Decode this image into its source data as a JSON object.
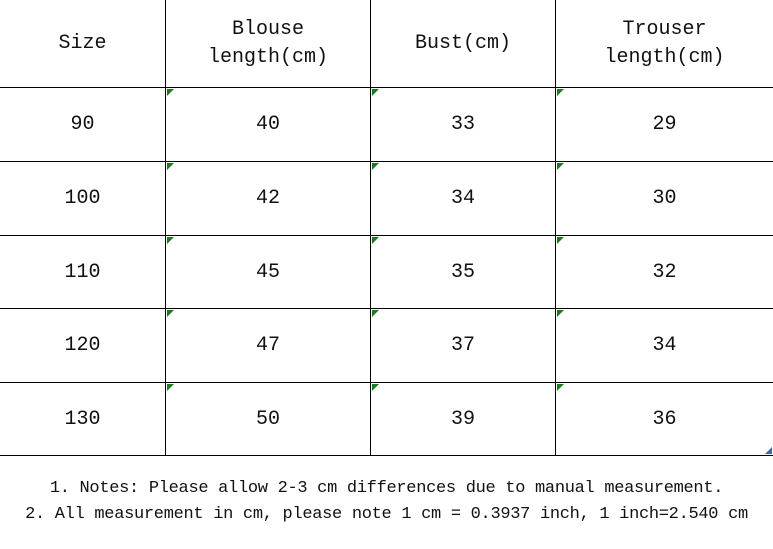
{
  "chart_data": {
    "type": "table",
    "columns": [
      "Size",
      "Blouse length(cm)",
      "Bust(cm)",
      "Trouser length(cm)"
    ],
    "rows": [
      [
        "90",
        "40",
        "33",
        "29"
      ],
      [
        "100",
        "42",
        "34",
        "30"
      ],
      [
        "110",
        "45",
        "35",
        "32"
      ],
      [
        "120",
        "47",
        "37",
        "34"
      ],
      [
        "130",
        "50",
        "39",
        "36"
      ]
    ]
  },
  "header_display": {
    "size": "Size",
    "blouse": [
      "Blouse",
      "length(cm)"
    ],
    "bust": "Bust(cm)",
    "trouser": [
      "Trouser",
      "length(cm)"
    ]
  },
  "notes": {
    "line1": "1. Notes: Please allow 2-3 cm differences due to manual measurement.",
    "line2": "2. All measurement in cm, please note 1 cm = 0.3937 inch, 1 inch=2.540 cm"
  },
  "icons": {
    "green_corner_triangle": "cell-corner-marker-green",
    "blue_corner_triangle": "cell-corner-marker-blue"
  },
  "colors": {
    "border": "#000000",
    "text": "#111111",
    "triangle_green": "#1e7a1e",
    "triangle_blue": "#4068b8",
    "background": "#ffffff"
  }
}
